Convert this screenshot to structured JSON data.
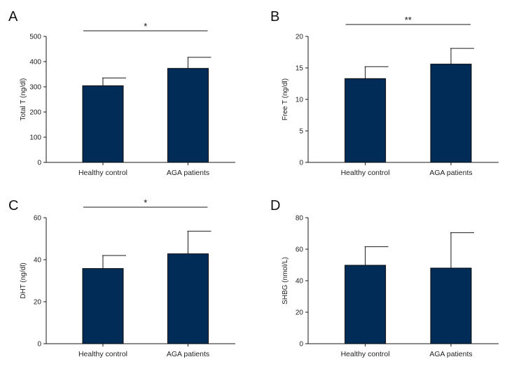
{
  "chart_data": [
    {
      "panel": "A",
      "type": "bar",
      "categories": [
        "Healthy control",
        "AGA patients"
      ],
      "values": [
        304,
        373
      ],
      "errors": [
        31,
        44
      ],
      "ylabel": "Total T (ng/dl)",
      "ylim": [
        0,
        500
      ],
      "yticks": [
        0,
        100,
        200,
        300,
        400,
        500
      ],
      "significance": "*",
      "bar_color": "#002c57"
    },
    {
      "panel": "B",
      "type": "bar",
      "categories": [
        "Healthy control",
        "AGA patients"
      ],
      "values": [
        13.3,
        15.6
      ],
      "errors": [
        1.9,
        2.5
      ],
      "ylabel": "Free T (ng/dl)",
      "ylim": [
        0,
        20
      ],
      "yticks": [
        0,
        5,
        10,
        15,
        20
      ],
      "significance": "**",
      "bar_color": "#002c57"
    },
    {
      "panel": "C",
      "type": "bar",
      "categories": [
        "Healthy control",
        "AGA patients"
      ],
      "values": [
        35.8,
        42.8
      ],
      "errors": [
        6.2,
        10.8
      ],
      "ylabel": "DHT (ng/dl)",
      "ylim": [
        0,
        60
      ],
      "yticks": [
        0,
        20,
        40,
        60
      ],
      "significance": "*",
      "bar_color": "#002c57"
    },
    {
      "panel": "D",
      "type": "bar",
      "categories": [
        "Healthy control",
        "AGA patients"
      ],
      "values": [
        49.8,
        48.0
      ],
      "errors": [
        11.8,
        22.5
      ],
      "ylabel": "SHBG (nmol/L)",
      "ylim": [
        0,
        80
      ],
      "yticks": [
        0,
        20,
        40,
        60,
        80
      ],
      "significance": "",
      "bar_color": "#002c57"
    }
  ]
}
